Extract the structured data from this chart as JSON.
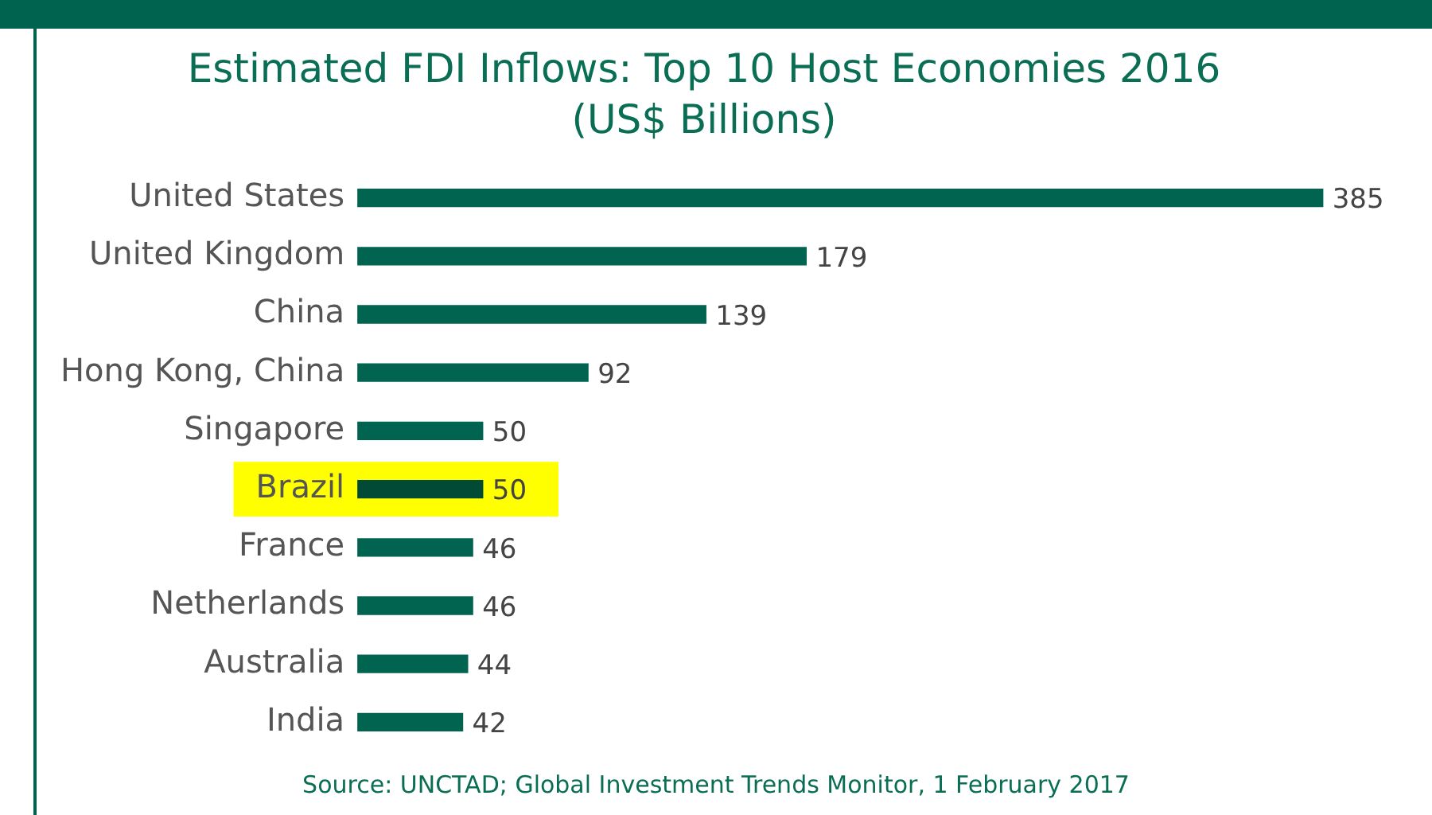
{
  "chart_data": {
    "type": "bar",
    "orientation": "horizontal",
    "title": "Estimated FDI Inflows: Top 10 Host Economies 2016",
    "subtitle": "(US$ Billions)",
    "categories": [
      "United States",
      "United Kingdom",
      "China",
      "Hong Kong, China",
      "Singapore",
      "Brazil",
      "France",
      "Netherlands",
      "Australia",
      "India"
    ],
    "values": [
      385,
      179,
      139,
      92,
      50,
      50,
      46,
      46,
      44,
      42
    ],
    "colors": [
      "#006450",
      "#006450",
      "#006450",
      "#006450",
      "#006450",
      "#004a36",
      "#006450",
      "#006450",
      "#006450",
      "#006450"
    ],
    "data_labels": true,
    "grid": false,
    "legend": false,
    "tick_labels": "y",
    "bands": [
      {
        "axis": "y",
        "from": "Brazil",
        "to": "Brazil",
        "color": "#ffff00"
      }
    ],
    "annotations": [
      "Source: UNCTAD; Global Investment Trends Monitor, 1 February 2017"
    ]
  }
}
